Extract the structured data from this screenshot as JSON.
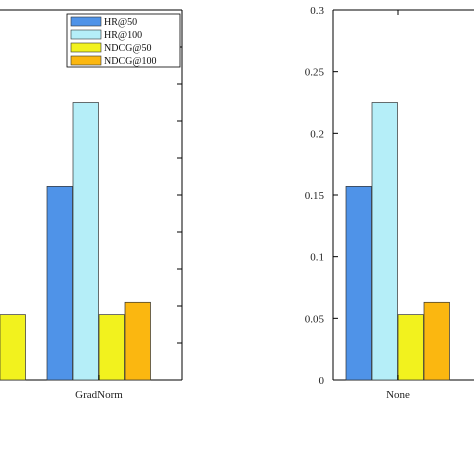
{
  "chart_data": [
    {
      "type": "bar",
      "categories": [
        "",
        "GradNorm"
      ],
      "series": [
        {
          "name": "HR@50",
          "color": "#4f93e8",
          "values": [
            null,
            0.157
          ]
        },
        {
          "name": "HR@100",
          "color": "#b5eef8",
          "values": [
            null,
            0.225
          ]
        },
        {
          "name": "NDCG@50",
          "color": "#f2f21e",
          "values": [
            0.053,
            0.053
          ]
        },
        {
          "name": "NDCG@100",
          "color": "#fbb710",
          "values": [
            null,
            0.063
          ]
        }
      ],
      "ylim": [
        0,
        0.3
      ],
      "legend": "top-right",
      "grid": false
    },
    {
      "type": "bar",
      "categories": [
        "None"
      ],
      "series": [
        {
          "name": "HR@50",
          "color": "#4f93e8",
          "values": [
            0.157
          ]
        },
        {
          "name": "HR@100",
          "color": "#b5eef8",
          "values": [
            0.225
          ]
        },
        {
          "name": "NDCG@50",
          "color": "#f2f21e",
          "values": [
            0.053
          ]
        },
        {
          "name": "NDCG@100",
          "color": "#fbb710",
          "values": [
            0.063
          ]
        }
      ],
      "ylim": [
        0,
        0.3
      ],
      "yticks": [
        "0",
        "0.05",
        "0.1",
        "0.15",
        "0.2",
        "0.25",
        "0.3"
      ],
      "grid": false
    }
  ]
}
